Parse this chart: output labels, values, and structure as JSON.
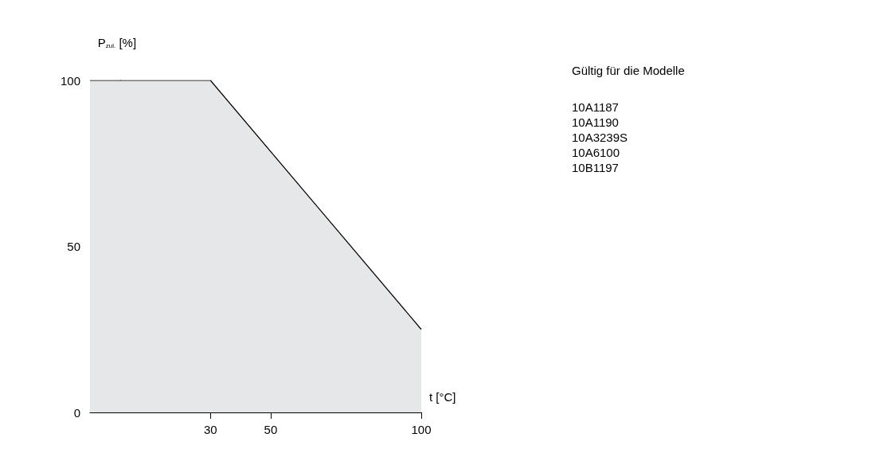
{
  "chart_data": {
    "type": "area",
    "x": [
      -10,
      30,
      100
    ],
    "values": [
      100,
      100,
      25
    ],
    "color": "#e6e7e8",
    "xlim": [
      -10,
      100
    ],
    "xticks": [
      30,
      50,
      100
    ],
    "ylim": [
      0,
      100
    ],
    "yticks": [
      0,
      50,
      100
    ],
    "grid": false,
    "xlabel": "t [°C]",
    "ylabel": "P$_{zul.}$ [%]",
    "annotations": [
      "Gültig für die Modelle",
      "10A1187",
      "10A1190",
      "10A3239S",
      "10A6100",
      "10B1197"
    ]
  }
}
